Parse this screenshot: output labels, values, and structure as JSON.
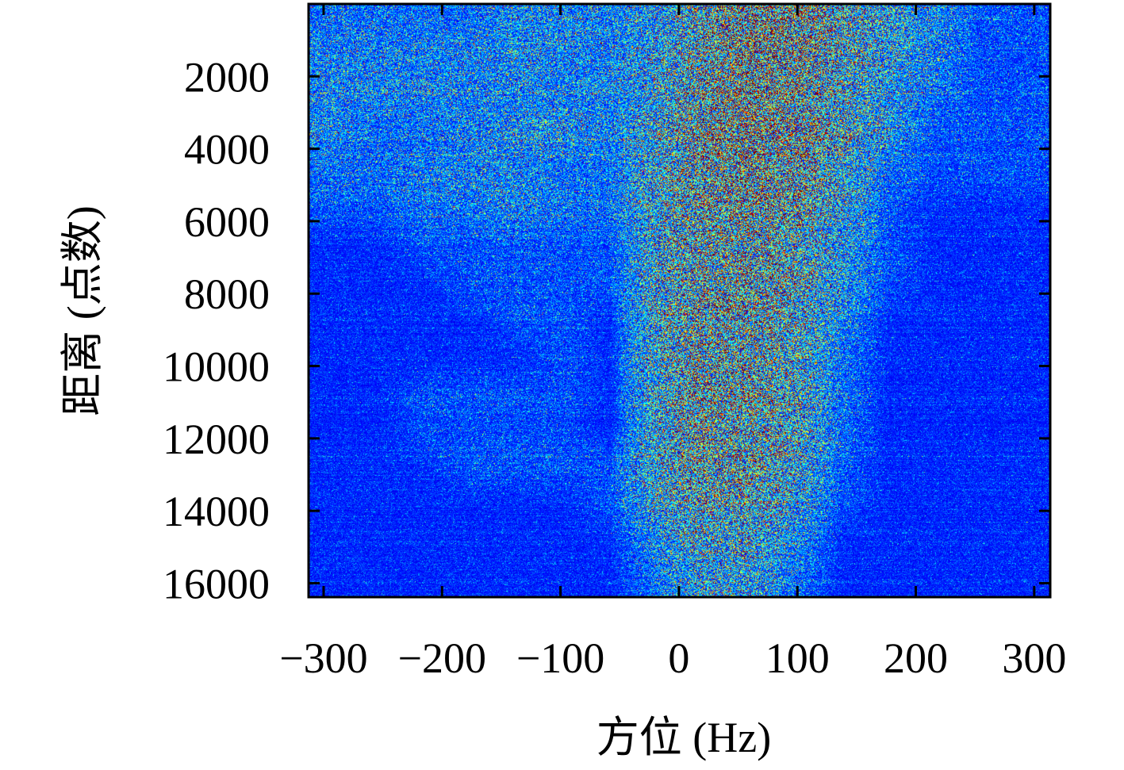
{
  "chart_data": {
    "type": "heatmap",
    "title": "",
    "xlabel": "方位 (Hz)",
    "ylabel": "距离 (点数)",
    "xlim": [
      -312.7,
      313.5
    ],
    "ylim": [
      0,
      16384
    ],
    "y_inverted": true,
    "xticks": [
      -300,
      -200,
      -100,
      0,
      100,
      200,
      300
    ],
    "xtick_labels": [
      "−300",
      "−200",
      "−100",
      "0",
      "100",
      "200",
      "300"
    ],
    "yticks": [
      2000,
      4000,
      6000,
      8000,
      10000,
      12000,
      14000,
      16000
    ],
    "ytick_labels": [
      "2000",
      "4000",
      "6000",
      "8000",
      "10000",
      "12000",
      "14000",
      "16000"
    ],
    "colormap": "jet",
    "grid": false,
    "legend": "none",
    "intensity_note": "coarse normalized intensity grid (0-1), rows = range bins top to bottom, cols = azimuth bins left to right",
    "grid_rows": 16,
    "grid_cols": 16,
    "intensity": [
      [
        0.25,
        0.25,
        0.25,
        0.25,
        0.3,
        0.3,
        0.3,
        0.35,
        0.55,
        0.7,
        0.7,
        0.55,
        0.4,
        0.3,
        0.2,
        0.2
      ],
      [
        0.3,
        0.3,
        0.3,
        0.3,
        0.35,
        0.3,
        0.3,
        0.4,
        0.6,
        0.75,
        0.7,
        0.55,
        0.4,
        0.3,
        0.2,
        0.2
      ],
      [
        0.3,
        0.3,
        0.3,
        0.3,
        0.3,
        0.3,
        0.3,
        0.4,
        0.65,
        0.75,
        0.7,
        0.5,
        0.35,
        0.25,
        0.2,
        0.2
      ],
      [
        0.3,
        0.25,
        0.25,
        0.3,
        0.35,
        0.35,
        0.3,
        0.45,
        0.7,
        0.75,
        0.7,
        0.55,
        0.35,
        0.2,
        0.2,
        0.2
      ],
      [
        0.25,
        0.25,
        0.3,
        0.3,
        0.3,
        0.25,
        0.25,
        0.45,
        0.65,
        0.7,
        0.65,
        0.45,
        0.25,
        0.2,
        0.2,
        0.2
      ],
      [
        0.2,
        0.2,
        0.25,
        0.25,
        0.3,
        0.25,
        0.25,
        0.45,
        0.6,
        0.65,
        0.6,
        0.4,
        0.2,
        0.15,
        0.15,
        0.15
      ],
      [
        0.15,
        0.15,
        0.2,
        0.2,
        0.2,
        0.2,
        0.2,
        0.45,
        0.6,
        0.6,
        0.5,
        0.35,
        0.2,
        0.15,
        0.15,
        0.15
      ],
      [
        0.15,
        0.15,
        0.15,
        0.2,
        0.2,
        0.2,
        0.2,
        0.45,
        0.6,
        0.65,
        0.55,
        0.35,
        0.2,
        0.15,
        0.15,
        0.15
      ],
      [
        0.15,
        0.15,
        0.15,
        0.15,
        0.2,
        0.2,
        0.15,
        0.45,
        0.6,
        0.6,
        0.5,
        0.3,
        0.15,
        0.15,
        0.15,
        0.15
      ],
      [
        0.15,
        0.15,
        0.15,
        0.15,
        0.15,
        0.2,
        0.15,
        0.45,
        0.6,
        0.6,
        0.5,
        0.25,
        0.15,
        0.15,
        0.15,
        0.15
      ],
      [
        0.15,
        0.15,
        0.2,
        0.2,
        0.2,
        0.2,
        0.15,
        0.45,
        0.65,
        0.65,
        0.5,
        0.25,
        0.15,
        0.15,
        0.15,
        0.15
      ],
      [
        0.15,
        0.15,
        0.2,
        0.2,
        0.2,
        0.2,
        0.15,
        0.45,
        0.65,
        0.6,
        0.5,
        0.25,
        0.15,
        0.15,
        0.15,
        0.15
      ],
      [
        0.15,
        0.15,
        0.15,
        0.2,
        0.2,
        0.2,
        0.2,
        0.45,
        0.6,
        0.6,
        0.45,
        0.2,
        0.15,
        0.15,
        0.15,
        0.15
      ],
      [
        0.15,
        0.15,
        0.15,
        0.15,
        0.15,
        0.15,
        0.2,
        0.4,
        0.55,
        0.55,
        0.4,
        0.2,
        0.15,
        0.15,
        0.15,
        0.15
      ],
      [
        0.15,
        0.15,
        0.15,
        0.15,
        0.15,
        0.15,
        0.15,
        0.3,
        0.45,
        0.45,
        0.3,
        0.15,
        0.15,
        0.15,
        0.15,
        0.15
      ],
      [
        0.15,
        0.15,
        0.15,
        0.15,
        0.15,
        0.15,
        0.15,
        0.25,
        0.4,
        0.4,
        0.25,
        0.15,
        0.15,
        0.15,
        0.15,
        0.15
      ]
    ]
  }
}
